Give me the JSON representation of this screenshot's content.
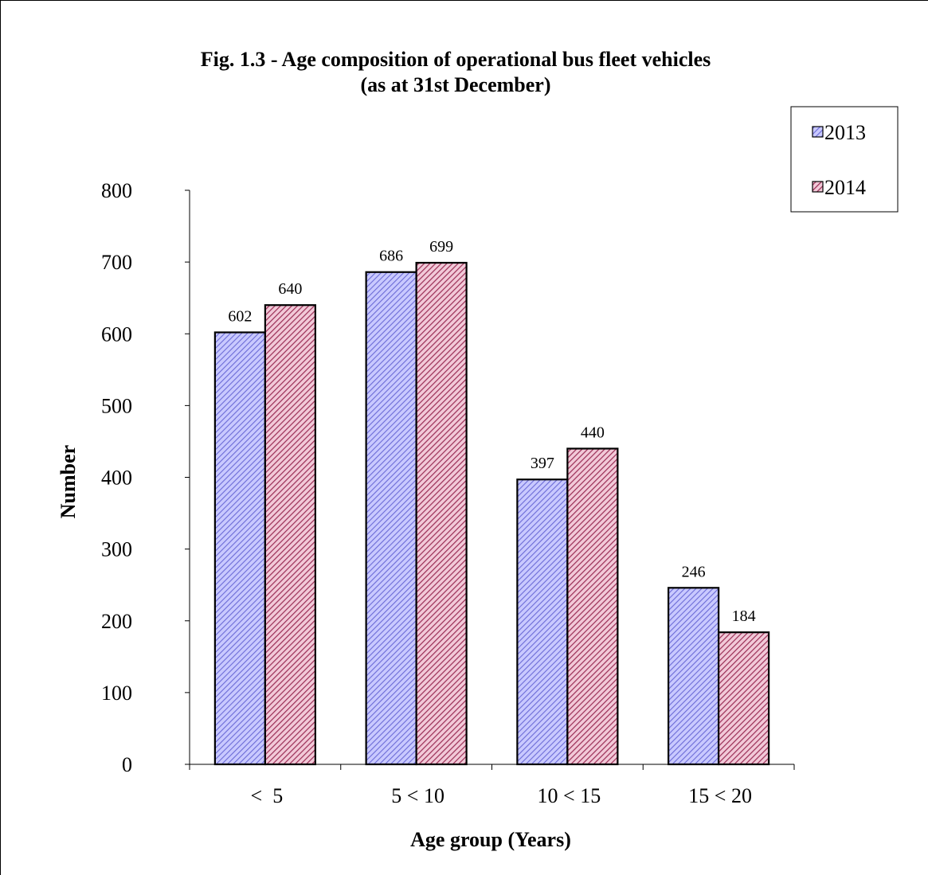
{
  "chart_data": {
    "type": "bar",
    "title_line1": "Fig. 1.3 - Age composition of operational bus fleet vehicles",
    "title_line2": "(as at 31st December)",
    "xlabel": "Age group (Years)",
    "ylabel": "Number",
    "categories": [
      "<  5",
      "5 < 10",
      "10 < 15",
      "15 < 20"
    ],
    "series": [
      {
        "name": "2013",
        "values": [
          602,
          686,
          397,
          246
        ],
        "color": "#b3b3ff",
        "stripe": "#6b6bd6"
      },
      {
        "name": "2014",
        "values": [
          640,
          699,
          440,
          184
        ],
        "color": "#e8b4c8",
        "stripe": "#9a2d55"
      }
    ],
    "ylim": [
      0,
      800
    ],
    "yticks": [
      0,
      100,
      200,
      300,
      400,
      500,
      600,
      700,
      800
    ],
    "grid": false,
    "legend_position": "top-right"
  }
}
